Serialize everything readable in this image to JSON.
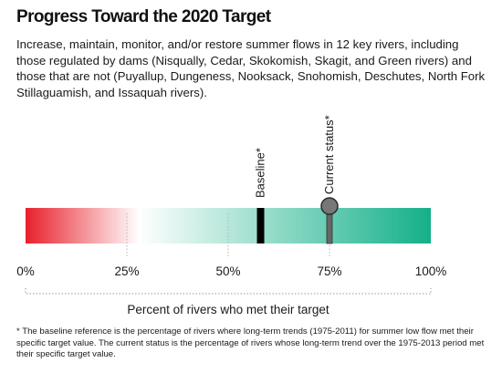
{
  "header": {
    "title": "Progress Toward the 2020 Target",
    "subtitle": "Increase, maintain, monitor, and/or restore summer flows in 12 key rivers, including those regulated by dams (Nisqually, Cedar, Skokomish, Skagit, and Green rivers) and those that are not (Puyallup, Dungeness, Nooksack, Snohomish, Deschutes, North Fork Stillaguamish, and Issaquah rivers)."
  },
  "chart_data": {
    "type": "gauge",
    "xlabel": "Percent of rivers who met their target",
    "xlim": [
      0,
      100
    ],
    "ticks": [
      0,
      25,
      50,
      75,
      100
    ],
    "tick_labels": [
      "0%",
      "25%",
      "50%",
      "75%",
      "100%"
    ],
    "markers": [
      {
        "label": "Baseline*",
        "value": 58,
        "style": "bar"
      },
      {
        "label": "Current status*",
        "value": 75,
        "style": "pin"
      }
    ],
    "gradient_stops": [
      {
        "value": 0,
        "color": "#e8202b"
      },
      {
        "value": 28,
        "color": "#ffffff"
      },
      {
        "value": 100,
        "color": "#14b088"
      }
    ]
  },
  "footnote": "* The baseline reference is the percentage of rivers where long-term trends (1975-2011) for summer low flow met their specific target value. The current status is the percentage of rivers whose long-term trend over the 1975-2013 period met their specific target value."
}
